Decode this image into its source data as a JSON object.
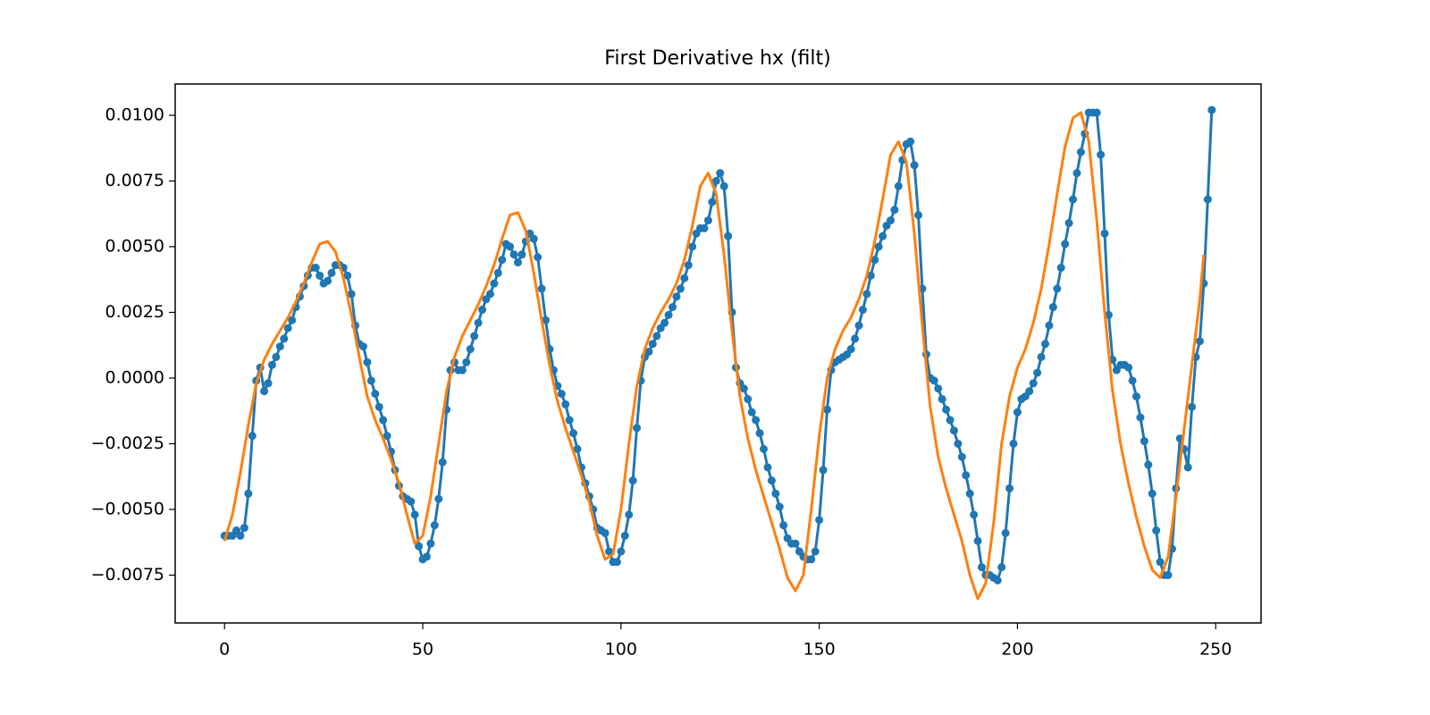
{
  "chart_data": {
    "type": "line",
    "title": "First Derivative hx (filt)",
    "xlim": [
      -12.45,
      261.45
    ],
    "xticks": [
      0,
      50,
      100,
      150,
      200,
      250
    ],
    "ylim": [
      -0.00932,
      0.01119
    ],
    "yticks": [
      {
        "value": -0.0075,
        "label": "−0.0075"
      },
      {
        "value": -0.005,
        "label": "−0.0050"
      },
      {
        "value": -0.0025,
        "label": "−0.0025"
      },
      {
        "value": 0,
        "label": "0.0000"
      },
      {
        "value": 0.0025,
        "label": "0.0025"
      },
      {
        "value": 0.005,
        "label": "0.0050"
      },
      {
        "value": 0.0075,
        "label": "0.0075"
      },
      {
        "value": 0.01,
        "label": "0.0100"
      }
    ],
    "series": [
      {
        "color": "#1f77b4",
        "marker": true,
        "x": [
          0,
          1,
          2,
          3,
          4,
          5,
          6,
          7,
          8,
          9,
          10,
          11,
          12,
          13,
          14,
          15,
          16,
          17,
          18,
          19,
          20,
          21,
          22,
          23,
          24,
          25,
          26,
          27,
          28,
          29,
          30,
          31,
          32,
          33,
          34,
          35,
          36,
          37,
          38,
          39,
          40,
          41,
          42,
          43,
          44,
          45,
          46,
          47,
          48,
          49,
          50,
          51,
          52,
          53,
          54,
          55,
          56,
          57,
          58,
          59,
          60,
          61,
          62,
          63,
          64,
          65,
          66,
          67,
          68,
          69,
          70,
          71,
          72,
          73,
          74,
          75,
          76,
          77,
          78,
          79,
          80,
          81,
          82,
          83,
          84,
          85,
          86,
          87,
          88,
          89,
          90,
          91,
          92,
          93,
          94,
          95,
          96,
          97,
          98,
          99,
          100,
          101,
          102,
          103,
          104,
          105,
          106,
          107,
          108,
          109,
          110,
          111,
          112,
          113,
          114,
          115,
          116,
          117,
          118,
          119,
          120,
          121,
          122,
          123,
          124,
          125,
          126,
          127,
          128,
          129,
          130,
          131,
          132,
          133,
          134,
          135,
          136,
          137,
          138,
          139,
          140,
          141,
          142,
          143,
          144,
          145,
          146,
          147,
          148,
          149,
          150,
          151,
          152,
          153,
          154,
          155,
          156,
          157,
          158,
          159,
          160,
          161,
          162,
          163,
          164,
          165,
          166,
          167,
          168,
          169,
          170,
          171,
          172,
          173,
          174,
          175,
          176,
          177,
          178,
          179,
          180,
          181,
          182,
          183,
          184,
          185,
          186,
          187,
          188,
          189,
          190,
          191,
          192,
          193,
          194,
          195,
          196,
          197,
          198,
          199,
          200,
          201,
          202,
          203,
          204,
          205,
          206,
          207,
          208,
          209,
          210,
          211,
          212,
          213,
          214,
          215,
          216,
          217,
          218,
          219,
          220,
          221,
          222,
          223,
          224,
          225,
          226,
          227,
          228,
          229,
          230,
          231,
          232,
          233,
          234,
          235,
          236,
          237,
          238,
          239,
          240,
          241,
          242,
          243,
          244,
          245,
          246,
          247,
          248,
          249
        ],
        "values": [
          -0.006,
          -0.006,
          -0.006,
          -0.0058,
          -0.006,
          -0.0057,
          -0.0044,
          -0.0022,
          -0.0001,
          0.0004,
          -0.0005,
          -0.0002,
          0.0005,
          0.0008,
          0.0012,
          0.0015,
          0.0019,
          0.0022,
          0.0027,
          0.0031,
          0.0035,
          0.0039,
          0.0042,
          0.0042,
          0.0039,
          0.0036,
          0.0037,
          0.004,
          0.0043,
          0.0043,
          0.0042,
          0.0039,
          0.0032,
          0.002,
          0.0013,
          0.0012,
          0.0006,
          -0.0001,
          -0.0006,
          -0.0011,
          -0.0016,
          -0.0022,
          -0.0028,
          -0.0035,
          -0.0041,
          -0.0045,
          -0.0046,
          -0.0047,
          -0.0052,
          -0.0064,
          -0.0069,
          -0.0068,
          -0.0063,
          -0.0056,
          -0.0046,
          -0.0032,
          -0.0012,
          0.0003,
          0.0006,
          0.0003,
          0.0003,
          0.0006,
          0.0011,
          0.0016,
          0.0021,
          0.0026,
          0.003,
          0.0032,
          0.0036,
          0.004,
          0.0045,
          0.0051,
          0.005,
          0.0047,
          0.0044,
          0.0047,
          0.0052,
          0.0055,
          0.0053,
          0.0046,
          0.0034,
          0.0022,
          0.0011,
          0.0003,
          -0.0003,
          -0.0006,
          -0.001,
          -0.0016,
          -0.0021,
          -0.0027,
          -0.0034,
          -0.004,
          -0.0045,
          -0.005,
          -0.0057,
          -0.0058,
          -0.0059,
          -0.0066,
          -0.007,
          -0.007,
          -0.0066,
          -0.006,
          -0.0052,
          -0.0039,
          -0.0019,
          -0.0001,
          0.0008,
          0.001,
          0.0013,
          0.0016,
          0.0019,
          0.0021,
          0.0024,
          0.0027,
          0.0031,
          0.0034,
          0.0038,
          0.0043,
          0.005,
          0.0055,
          0.0057,
          0.0057,
          0.006,
          0.0067,
          0.0075,
          0.0078,
          0.0073,
          0.0054,
          0.0025,
          0.0004,
          -0.0002,
          -0.0004,
          -0.0008,
          -0.0013,
          -0.0016,
          -0.0021,
          -0.0027,
          -0.0034,
          -0.0039,
          -0.0044,
          -0.0049,
          -0.0056,
          -0.0061,
          -0.0063,
          -0.0063,
          -0.0066,
          -0.0068,
          -0.0069,
          -0.0069,
          -0.0066,
          -0.0054,
          -0.0035,
          -0.0012,
          0.0003,
          0.0006,
          0.0007,
          0.0008,
          0.0009,
          0.0011,
          0.0015,
          0.002,
          0.0026,
          0.0032,
          0.0039,
          0.0045,
          0.005,
          0.0054,
          0.0058,
          0.006,
          0.0064,
          0.0073,
          0.0083,
          0.0089,
          0.009,
          0.0081,
          0.0062,
          0.0034,
          0.0009,
          0,
          -0.0001,
          -0.0004,
          -0.0008,
          -0.0012,
          -0.0016,
          -0.002,
          -0.0025,
          -0.003,
          -0.0037,
          -0.0044,
          -0.0052,
          -0.0062,
          -0.0072,
          -0.0075,
          -0.0075,
          -0.0076,
          -0.0077,
          -0.0072,
          -0.0059,
          -0.0042,
          -0.0025,
          -0.0013,
          -0.0008,
          -0.0007,
          -0.0005,
          -0.0002,
          0.0002,
          0.0008,
          0.0013,
          0.002,
          0.0027,
          0.0034,
          0.0042,
          0.0051,
          0.0059,
          0.0068,
          0.0078,
          0.0086,
          0.0093,
          0.0101,
          0.0101,
          0.0101,
          0.0085,
          0.0055,
          0.0024,
          0.0007,
          0.0003,
          0.0005,
          0.0005,
          0.0004,
          -0.0001,
          -0.0007,
          -0.0015,
          -0.0024,
          -0.0033,
          -0.0044,
          -0.0058,
          -0.007,
          -0.0075,
          -0.0075,
          -0.0065,
          -0.0042,
          -0.0023,
          -0.0027,
          -0.0034,
          -0.0011,
          0.0008,
          0.0014,
          0.0036,
          0.0068,
          0.0102
        ]
      },
      {
        "color": "#ff7f0e",
        "marker": false,
        "x": [
          0,
          2,
          4,
          6,
          8,
          10,
          12,
          14,
          16,
          18,
          20,
          22,
          24,
          26,
          28,
          30,
          32,
          34,
          36,
          38,
          40,
          42,
          44,
          46,
          48,
          50,
          52,
          54,
          56,
          58,
          60,
          62,
          64,
          66,
          68,
          70,
          72,
          74,
          76,
          78,
          80,
          82,
          84,
          86,
          88,
          90,
          92,
          94,
          96,
          98,
          100,
          102,
          104,
          106,
          108,
          110,
          112,
          114,
          116,
          118,
          120,
          122,
          124,
          126,
          128,
          130,
          132,
          134,
          136,
          138,
          140,
          142,
          144,
          146,
          148,
          150,
          152,
          154,
          156,
          158,
          160,
          162,
          164,
          166,
          168,
          170,
          172,
          174,
          176,
          178,
          180,
          182,
          184,
          186,
          188,
          190,
          192,
          194,
          196,
          198,
          200,
          202,
          204,
          206,
          208,
          210,
          212,
          214,
          216,
          218,
          220,
          222,
          224,
          226,
          228,
          230,
          232,
          234,
          236,
          238,
          240,
          242,
          244,
          246,
          247
        ],
        "values": [
          -0.0062,
          -0.0052,
          -0.0036,
          -0.0018,
          -0.0002,
          0.0007,
          0.0013,
          0.0018,
          0.0023,
          0.0029,
          0.0036,
          0.0044,
          0.0051,
          0.0052,
          0.0048,
          0.0038,
          0.0024,
          0.0008,
          -0.0007,
          -0.0016,
          -0.0023,
          -0.0031,
          -0.004,
          -0.0052,
          -0.0063,
          -0.006,
          -0.0045,
          -0.0025,
          -0.0005,
          0.0008,
          0.0016,
          0.0022,
          0.0028,
          0.0035,
          0.0043,
          0.0053,
          0.0062,
          0.0063,
          0.0056,
          0.004,
          0.0022,
          0.0005,
          -0.0009,
          -0.0019,
          -0.0028,
          -0.0037,
          -0.0047,
          -0.006,
          -0.0069,
          -0.0067,
          -0.005,
          -0.0025,
          -0.0003,
          0.0011,
          0.0019,
          0.0025,
          0.003,
          0.0036,
          0.0045,
          0.0058,
          0.0073,
          0.0078,
          0.007,
          0.0047,
          0.0018,
          -0.0007,
          -0.0023,
          -0.0035,
          -0.0045,
          -0.0055,
          -0.0065,
          -0.0076,
          -0.0081,
          -0.0075,
          -0.005,
          -0.0022,
          0,
          0.0011,
          0.0018,
          0.0023,
          0.003,
          0.0039,
          0.0052,
          0.0068,
          0.0085,
          0.009,
          0.0082,
          0.0055,
          0.002,
          -0.0011,
          -0.003,
          -0.0042,
          -0.0052,
          -0.0062,
          -0.0075,
          -0.0084,
          -0.0078,
          -0.0055,
          -0.0025,
          -0.0007,
          0.0004,
          0.0011,
          0.0021,
          0.0034,
          0.0051,
          0.007,
          0.0088,
          0.0099,
          0.0101,
          0.009,
          0.006,
          0.0025,
          -0.0005,
          -0.0025,
          -0.004,
          -0.0053,
          -0.0064,
          -0.0073,
          -0.0076,
          -0.0068,
          -0.0045,
          -0.002,
          0.0005,
          0.003,
          0.0047
        ]
      }
    ]
  }
}
